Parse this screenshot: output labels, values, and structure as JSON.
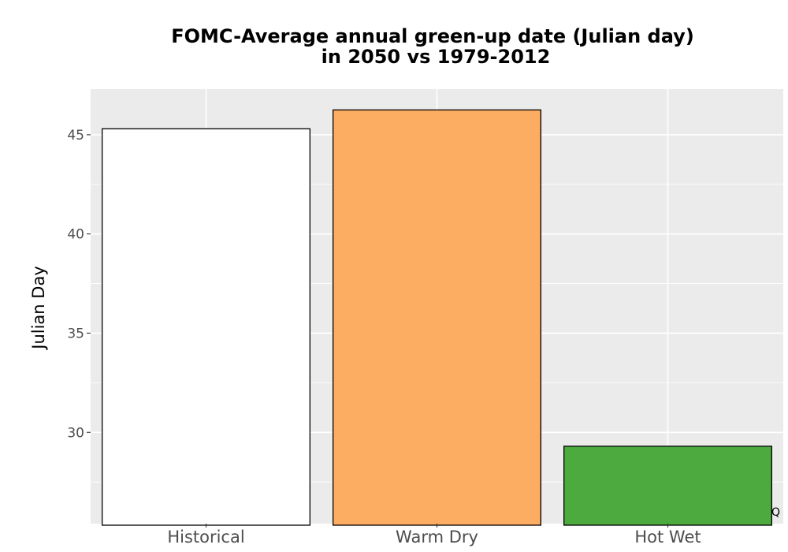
{
  "chart_data": {
    "type": "bar",
    "title_lines": [
      "FOMC-Average annual green-up date (Julian day)",
      "in 2050 vs 1979-2012"
    ],
    "ylabel": "Julian Day",
    "xlabel": "",
    "categories": [
      "Historical",
      "Warm Dry",
      "Hot Wet"
    ],
    "values": [
      45.3,
      46.25,
      29.3
    ],
    "colors": [
      "#ffffff",
      "#fdad61",
      "#4daa3f"
    ],
    "bar_outline": "#000000",
    "ylim": [
      25.4,
      47.3
    ],
    "yticks": [
      30,
      35,
      40,
      45
    ],
    "ytick_labels": [
      "30",
      "35",
      "40",
      "45"
    ],
    "grid": true,
    "panel_background": "#ebebeb",
    "grid_color": "#ffffff",
    "corner_note": "Q"
  }
}
